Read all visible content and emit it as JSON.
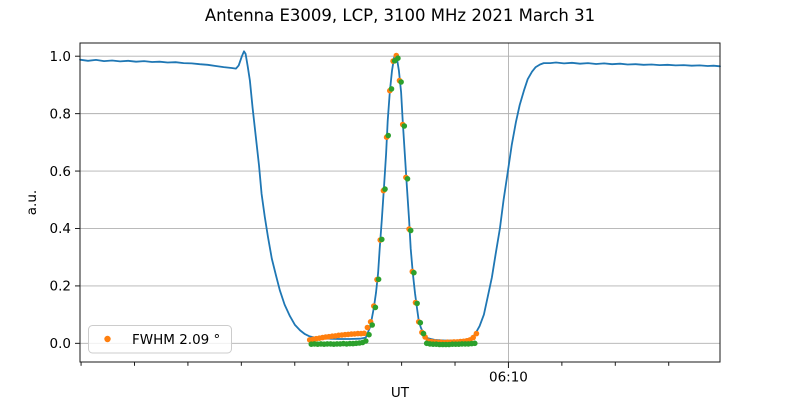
{
  "title": "Antenna E3009, LCP, 3100 MHz 2021 March 31",
  "legend": {
    "label": "FWHM 2.09 °",
    "marker_color": "#ff7f0e",
    "location": "lower left"
  },
  "colors": {
    "line": "#1f77b4",
    "scatter_primary": "#ff7f0e",
    "scatter_secondary": "#2ca02c",
    "grid": "#b0b0b0",
    "spine": "#1a1a1a",
    "legend_border": "#cccccc"
  },
  "chart_data": {
    "type": "line",
    "title": "Antenna E3009, LCP, 3100 MHz 2021 March 31",
    "xlabel": "UT",
    "ylabel": "a.u.",
    "x_unit": "minutes relative to 06:10 UT",
    "xlim": [
      -8.02,
      3.96
    ],
    "ylim": [
      -0.065,
      1.046
    ],
    "x_major_ticks": [
      {
        "value": 0,
        "label": "06:10"
      }
    ],
    "x_minor_ticks": [
      -8,
      -7,
      -6,
      -5,
      -4,
      -3,
      -2,
      -1,
      1,
      2,
      3
    ],
    "y_ticks": [
      {
        "value": 0.0,
        "label": "0.0"
      },
      {
        "value": 0.2,
        "label": "0.2"
      },
      {
        "value": 0.4,
        "label": "0.4"
      },
      {
        "value": 0.6,
        "label": "0.6"
      },
      {
        "value": 0.8,
        "label": "0.8"
      },
      {
        "value": 1.0,
        "label": "1.0"
      }
    ],
    "grid": {
      "horizontal": true,
      "vertical_on_major": true
    },
    "series": [
      {
        "name": "antenna-signal-line",
        "type": "line",
        "color": "#1f77b4",
        "width": 1.8,
        "points": [
          [
            -8.02,
            0.988
          ],
          [
            -7.87,
            0.984
          ],
          [
            -7.72,
            0.987
          ],
          [
            -7.57,
            0.983
          ],
          [
            -7.42,
            0.985
          ],
          [
            -7.27,
            0.982
          ],
          [
            -7.12,
            0.984
          ],
          [
            -6.97,
            0.981
          ],
          [
            -6.82,
            0.983
          ],
          [
            -6.67,
            0.98
          ],
          [
            -6.53,
            0.981
          ],
          [
            -6.38,
            0.978
          ],
          [
            -6.23,
            0.979
          ],
          [
            -6.08,
            0.976
          ],
          [
            -5.93,
            0.975
          ],
          [
            -5.78,
            0.972
          ],
          [
            -5.63,
            0.97
          ],
          [
            -5.48,
            0.966
          ],
          [
            -5.33,
            0.962
          ],
          [
            -5.18,
            0.959
          ],
          [
            -5.1,
            0.957
          ],
          [
            -5.05,
            0.968
          ],
          [
            -4.99,
            1.0
          ],
          [
            -4.95,
            1.017
          ],
          [
            -4.92,
            1.008
          ],
          [
            -4.88,
            0.965
          ],
          [
            -4.84,
            0.915
          ],
          [
            -4.79,
            0.82
          ],
          [
            -4.73,
            0.72
          ],
          [
            -4.67,
            0.62
          ],
          [
            -4.62,
            0.52
          ],
          [
            -4.56,
            0.44
          ],
          [
            -4.5,
            0.37
          ],
          [
            -4.43,
            0.295
          ],
          [
            -4.35,
            0.235
          ],
          [
            -4.28,
            0.185
          ],
          [
            -4.19,
            0.135
          ],
          [
            -4.09,
            0.095
          ],
          [
            -4.0,
            0.065
          ],
          [
            -3.9,
            0.045
          ],
          [
            -3.81,
            0.032
          ],
          [
            -3.72,
            0.024
          ],
          [
            -3.62,
            0.02
          ],
          [
            -3.53,
            0.018
          ],
          [
            -3.34,
            0.016
          ],
          [
            -3.16,
            0.015
          ],
          [
            -2.97,
            0.015
          ],
          [
            -2.78,
            0.016
          ],
          [
            -2.67,
            0.02
          ],
          [
            -2.63,
            0.038
          ],
          [
            -2.59,
            0.057
          ],
          [
            -2.56,
            0.084
          ],
          [
            -2.52,
            0.123
          ],
          [
            -2.48,
            0.176
          ],
          [
            -2.44,
            0.245
          ],
          [
            -2.41,
            0.33
          ],
          [
            -2.37,
            0.43
          ],
          [
            -2.33,
            0.545
          ],
          [
            -2.29,
            0.66
          ],
          [
            -2.26,
            0.775
          ],
          [
            -2.22,
            0.875
          ],
          [
            -2.18,
            0.95
          ],
          [
            -2.14,
            0.995
          ],
          [
            -2.12,
            1.005
          ],
          [
            -2.09,
            0.995
          ],
          [
            -2.05,
            0.95
          ],
          [
            -2.01,
            0.875
          ],
          [
            -1.98,
            0.775
          ],
          [
            -1.94,
            0.66
          ],
          [
            -1.9,
            0.545
          ],
          [
            -1.86,
            0.43
          ],
          [
            -1.83,
            0.33
          ],
          [
            -1.79,
            0.245
          ],
          [
            -1.75,
            0.175
          ],
          [
            -1.71,
            0.12
          ],
          [
            -1.68,
            0.08
          ],
          [
            -1.64,
            0.055
          ],
          [
            -1.58,
            0.03
          ],
          [
            -1.51,
            0.018
          ],
          [
            -1.38,
            0.012
          ],
          [
            -1.19,
            0.01
          ],
          [
            -1.0,
            0.01
          ],
          [
            -0.82,
            0.012
          ],
          [
            -0.7,
            0.018
          ],
          [
            -0.63,
            0.03
          ],
          [
            -0.54,
            0.06
          ],
          [
            -0.46,
            0.1
          ],
          [
            -0.39,
            0.16
          ],
          [
            -0.31,
            0.23
          ],
          [
            -0.24,
            0.31
          ],
          [
            -0.16,
            0.4
          ],
          [
            -0.09,
            0.5
          ],
          [
            -0.01,
            0.6
          ],
          [
            0.06,
            0.69
          ],
          [
            0.14,
            0.77
          ],
          [
            0.21,
            0.83
          ],
          [
            0.29,
            0.88
          ],
          [
            0.36,
            0.92
          ],
          [
            0.44,
            0.946
          ],
          [
            0.51,
            0.962
          ],
          [
            0.59,
            0.971
          ],
          [
            0.66,
            0.976
          ],
          [
            0.78,
            0.976
          ],
          [
            0.89,
            0.978
          ],
          [
            1.04,
            0.975
          ],
          [
            1.19,
            0.977
          ],
          [
            1.34,
            0.974
          ],
          [
            1.49,
            0.976
          ],
          [
            1.64,
            0.973
          ],
          [
            1.79,
            0.975
          ],
          [
            1.94,
            0.972
          ],
          [
            2.09,
            0.974
          ],
          [
            2.23,
            0.971
          ],
          [
            2.38,
            0.972
          ],
          [
            2.53,
            0.97
          ],
          [
            2.68,
            0.971
          ],
          [
            2.83,
            0.969
          ],
          [
            2.98,
            0.97
          ],
          [
            3.13,
            0.968
          ],
          [
            3.28,
            0.969
          ],
          [
            3.43,
            0.967
          ],
          [
            3.58,
            0.968
          ],
          [
            3.73,
            0.966
          ],
          [
            3.84,
            0.967
          ],
          [
            3.96,
            0.965
          ]
        ]
      },
      {
        "name": "fwhm-fit-points",
        "type": "scatter",
        "color": "#ff7f0e",
        "radius": 2.8,
        "points": [
          [
            -3.72,
            0.012
          ],
          [
            -3.66,
            0.014
          ],
          [
            -3.6,
            0.016
          ],
          [
            -3.54,
            0.018
          ],
          [
            -3.48,
            0.02
          ],
          [
            -3.42,
            0.022
          ],
          [
            -3.36,
            0.023
          ],
          [
            -3.3,
            0.025
          ],
          [
            -3.24,
            0.026
          ],
          [
            -3.18,
            0.028
          ],
          [
            -3.12,
            0.029
          ],
          [
            -3.06,
            0.03
          ],
          [
            -3.0,
            0.031
          ],
          [
            -2.94,
            0.032
          ],
          [
            -2.88,
            0.033
          ],
          [
            -2.82,
            0.034
          ],
          [
            -2.76,
            0.034
          ],
          [
            -2.7,
            0.035
          ],
          [
            -2.64,
            0.055
          ],
          [
            -2.58,
            0.075
          ],
          [
            -2.52,
            0.13
          ],
          [
            -2.46,
            0.222
          ],
          [
            -2.4,
            0.36
          ],
          [
            -2.34,
            0.532
          ],
          [
            -2.28,
            0.718
          ],
          [
            -2.22,
            0.88
          ],
          [
            -2.16,
            0.983
          ],
          [
            -2.1,
            1.002
          ],
          [
            -2.04,
            0.915
          ],
          [
            -1.98,
            0.762
          ],
          [
            -1.92,
            0.578
          ],
          [
            -1.86,
            0.398
          ],
          [
            -1.8,
            0.25
          ],
          [
            -1.74,
            0.142
          ],
          [
            -1.68,
            0.075
          ],
          [
            -1.62,
            0.038
          ],
          [
            -1.56,
            0.022
          ],
          [
            -1.5,
            0.008
          ],
          [
            -1.44,
            0.006
          ],
          [
            -1.38,
            0.005
          ],
          [
            -1.32,
            0.004
          ],
          [
            -1.26,
            0.004
          ],
          [
            -1.2,
            0.003
          ],
          [
            -1.14,
            0.004
          ],
          [
            -1.08,
            0.004
          ],
          [
            -1.02,
            0.005
          ],
          [
            -0.96,
            0.005
          ],
          [
            -0.9,
            0.006
          ],
          [
            -0.84,
            0.007
          ],
          [
            -0.78,
            0.009
          ],
          [
            -0.72,
            0.012
          ],
          [
            -0.66,
            0.02
          ],
          [
            -0.6,
            0.034
          ]
        ]
      },
      {
        "name": "drift-scan-points",
        "type": "scatter",
        "color": "#2ca02c",
        "radius": 2.8,
        "points": [
          [
            -3.69,
            -0.003
          ],
          [
            -3.63,
            -0.002
          ],
          [
            -3.57,
            -0.003
          ],
          [
            -3.51,
            -0.002
          ],
          [
            -3.45,
            -0.003
          ],
          [
            -3.39,
            -0.002
          ],
          [
            -3.33,
            -0.002
          ],
          [
            -3.27,
            -0.003
          ],
          [
            -3.21,
            -0.002
          ],
          [
            -3.15,
            -0.002
          ],
          [
            -3.09,
            -0.001
          ],
          [
            -3.03,
            -0.002
          ],
          [
            -2.97,
            -0.001
          ],
          [
            -2.91,
            -0.001
          ],
          [
            -2.85,
            0.0
          ],
          [
            -2.79,
            0.001
          ],
          [
            -2.73,
            0.003
          ],
          [
            -2.67,
            0.008
          ],
          [
            -2.61,
            0.03
          ],
          [
            -2.55,
            0.064
          ],
          [
            -2.49,
            0.125
          ],
          [
            -2.43,
            0.223
          ],
          [
            -2.37,
            0.362
          ],
          [
            -2.31,
            0.537
          ],
          [
            -2.25,
            0.724
          ],
          [
            -2.19,
            0.886
          ],
          [
            -2.13,
            0.984
          ],
          [
            -2.07,
            0.993
          ],
          [
            -2.01,
            0.91
          ],
          [
            -1.95,
            0.757
          ],
          [
            -1.89,
            0.573
          ],
          [
            -1.83,
            0.393
          ],
          [
            -1.77,
            0.246
          ],
          [
            -1.71,
            0.139
          ],
          [
            -1.65,
            0.072
          ],
          [
            -1.59,
            0.034
          ],
          [
            -1.53,
            0.0
          ],
          [
            -1.47,
            -0.002
          ],
          [
            -1.41,
            -0.003
          ],
          [
            -1.35,
            -0.003
          ],
          [
            -1.29,
            -0.004
          ],
          [
            -1.23,
            -0.004
          ],
          [
            -1.17,
            -0.004
          ],
          [
            -1.11,
            -0.004
          ],
          [
            -1.05,
            -0.003
          ],
          [
            -0.99,
            -0.003
          ],
          [
            -0.93,
            -0.003
          ],
          [
            -0.87,
            -0.002
          ],
          [
            -0.81,
            -0.002
          ],
          [
            -0.75,
            -0.002
          ],
          [
            -0.69,
            -0.001
          ],
          [
            -0.63,
            0.0
          ]
        ]
      }
    ],
    "legend": {
      "label": "FWHM 2.09 °",
      "position": "lower left"
    }
  }
}
